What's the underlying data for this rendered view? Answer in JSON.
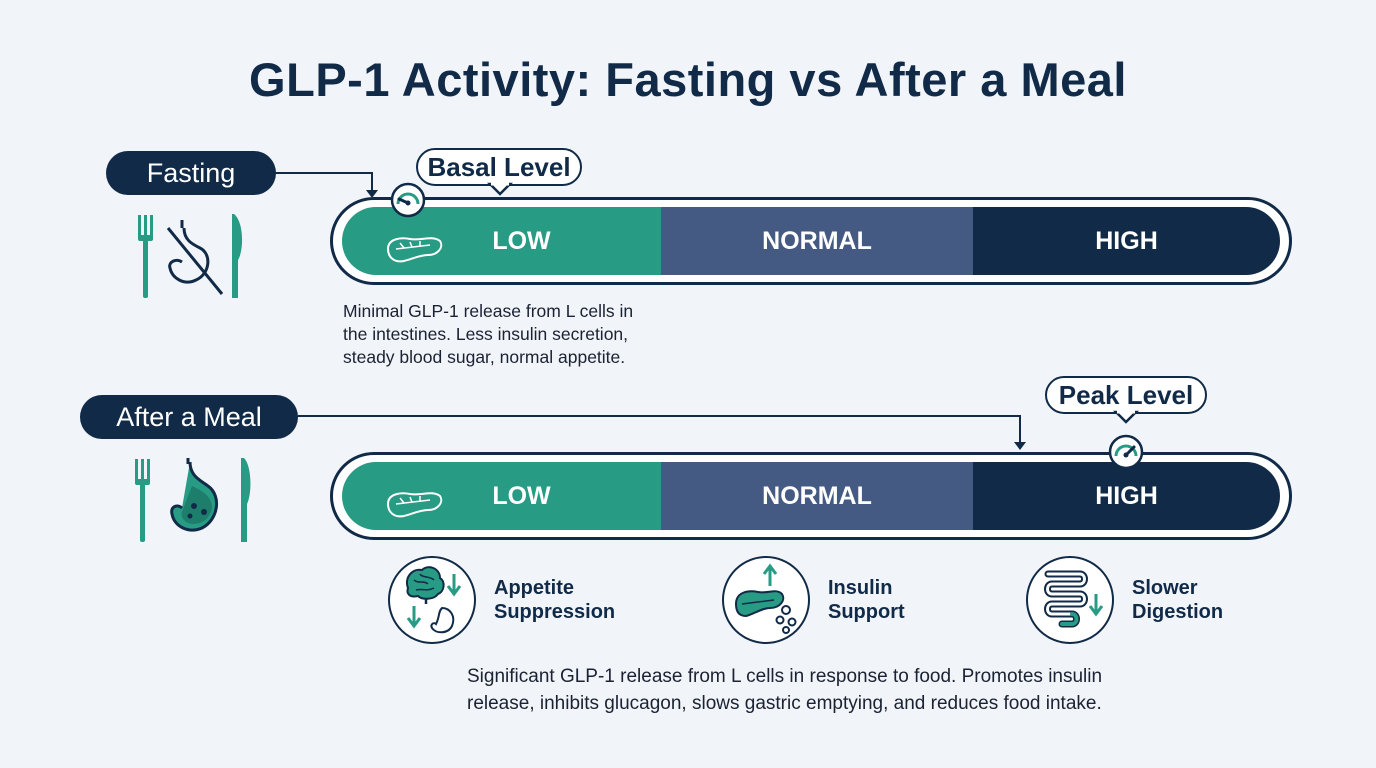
{
  "title": "GLP-1 Activity: Fasting vs After a Meal",
  "colors": {
    "low": "#279b83",
    "normal": "#455a83",
    "high": "#102a47",
    "outline": "#102a47"
  },
  "fasting": {
    "label": "Fasting",
    "callout": "Basal Level",
    "icon": "fork-knife-crossed-stomach-icon",
    "segments": [
      "LOW",
      "NORMAL",
      "HIGH"
    ],
    "indicated_level": "LOW",
    "description": [
      "Minimal GLP-1 release from L cells in",
      "the intestines. Less insulin secretion,",
      "steady blood sugar, normal appetite."
    ]
  },
  "meal": {
    "label": "After a Meal",
    "callout": "Peak Level",
    "icon": "fork-knife-full-stomach-icon",
    "segments": [
      "LOW",
      "NORMAL",
      "HIGH"
    ],
    "indicated_level": "HIGH",
    "effects": [
      {
        "line1": "Appetite",
        "line2": "Suppression",
        "icon": "brain-stomach-icon"
      },
      {
        "line1": "Insulin",
        "line2": "Support",
        "icon": "pancreas-insulin-icon"
      },
      {
        "line1": "Slower",
        "line2": "Digestion",
        "icon": "intestine-icon"
      }
    ],
    "description": [
      "Significant GLP-1 release from L cells in response to food. Promotes insulin",
      "release, inhibits glucagon, slows gastric emptying, and reduces food intake."
    ]
  }
}
